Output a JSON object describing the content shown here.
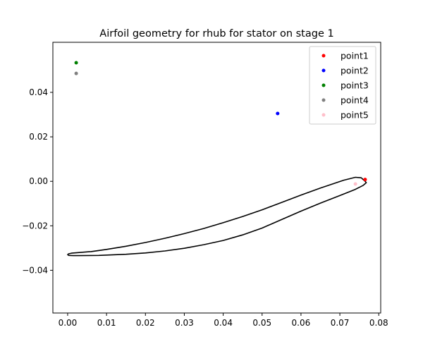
{
  "chart_data": {
    "type": "scatter",
    "title": "Airfoil geometry for rhub for stator on stage 1",
    "xlabel": "",
    "ylabel": "",
    "xlim": [
      -0.0038,
      0.0805
    ],
    "ylim": [
      -0.0592,
      0.0625
    ],
    "xticks": [
      0.0,
      0.01,
      0.02,
      0.03,
      0.04,
      0.05,
      0.06,
      0.07,
      0.08
    ],
    "xtick_labels": [
      "0.00",
      "0.01",
      "0.02",
      "0.03",
      "0.04",
      "0.05",
      "0.06",
      "0.07",
      "0.08"
    ],
    "yticks": [
      -0.04,
      -0.02,
      0.0,
      0.02,
      0.04
    ],
    "ytick_labels": [
      "−0.04",
      "−0.02",
      "0.00",
      "0.02",
      "0.04"
    ],
    "grid": false,
    "legend_position": "top-right",
    "series": [
      {
        "name": "point1",
        "color": "#ff0000",
        "x": [
          0.0765
        ],
        "y": [
          0.0008
        ]
      },
      {
        "name": "point2",
        "color": "#0000ff",
        "x": [
          0.054
        ],
        "y": [
          0.0305
        ]
      },
      {
        "name": "point3",
        "color": "#008000",
        "x": [
          0.0022
        ],
        "y": [
          0.0533
        ]
      },
      {
        "name": "point4",
        "color": "#808080",
        "x": [
          0.0022
        ],
        "y": [
          0.0485
        ]
      },
      {
        "name": "point5",
        "color": "#ffc0cb",
        "x": [
          0.074
        ],
        "y": [
          -0.0012
        ]
      }
    ],
    "outline": {
      "color": "#000000",
      "x": [
        0.0765,
        0.0755,
        0.074,
        0.071,
        0.065,
        0.06,
        0.055,
        0.05,
        0.045,
        0.04,
        0.035,
        0.03,
        0.025,
        0.02,
        0.015,
        0.01,
        0.006,
        0.003,
        0.001,
        0.0002,
        0.0,
        0.0003,
        0.0015,
        0.003,
        0.008,
        0.015,
        0.02,
        0.025,
        0.03,
        0.035,
        0.04,
        0.045,
        0.05,
        0.055,
        0.06,
        0.065,
        0.07,
        0.074,
        0.076,
        0.0768,
        0.0765
      ],
      "y": [
        0.0,
        0.0016,
        0.0018,
        0.0005,
        -0.003,
        -0.0062,
        -0.0095,
        -0.0128,
        -0.0158,
        -0.0186,
        -0.0212,
        -0.0235,
        -0.0256,
        -0.0275,
        -0.0292,
        -0.0306,
        -0.0316,
        -0.032,
        -0.0323,
        -0.0326,
        -0.033,
        -0.0333,
        -0.0334,
        -0.0334,
        -0.0333,
        -0.0328,
        -0.0322,
        -0.0313,
        -0.0301,
        -0.0285,
        -0.0266,
        -0.0241,
        -0.021,
        -0.0172,
        -0.0134,
        -0.0098,
        -0.0064,
        -0.0036,
        -0.0018,
        -0.0006,
        0.0
      ]
    }
  }
}
